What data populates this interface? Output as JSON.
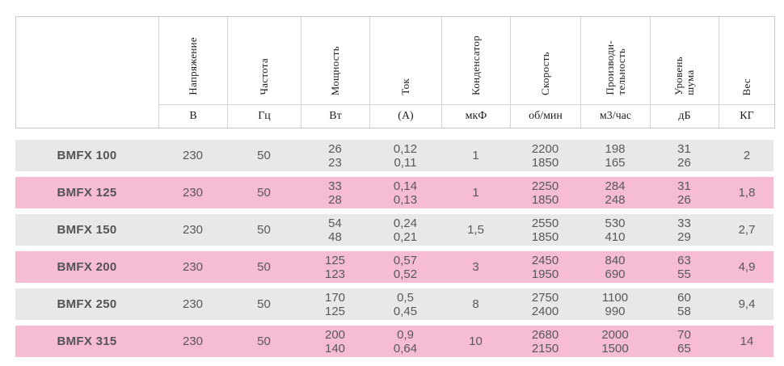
{
  "table": {
    "columns": [
      {
        "label": "Напряжение",
        "unit": "В"
      },
      {
        "label": "Частота",
        "unit": "Гц"
      },
      {
        "label": "Мощность",
        "unit": "Вт"
      },
      {
        "label": "Ток",
        "unit": "(А)"
      },
      {
        "label": "Конденсатор",
        "unit": "мкФ"
      },
      {
        "label": "Скорость",
        "unit": "об/мин"
      },
      {
        "label": "Производи-\nтельность",
        "unit": "м3/час"
      },
      {
        "label": "Уровень\nшума",
        "unit": "дБ"
      },
      {
        "label": "Вес",
        "unit": "КГ"
      }
    ],
    "rows": [
      {
        "model": "BMFX 100",
        "highlight": false,
        "values": [
          "230",
          "50",
          "26\n23",
          "0,12\n0,11",
          "1",
          "2200\n1850",
          "198\n165",
          "31\n26",
          "2"
        ]
      },
      {
        "model": "BMFX 125",
        "highlight": true,
        "values": [
          "230",
          "50",
          "33\n28",
          "0,14\n0,13",
          "1",
          "2250\n1850",
          "284\n248",
          "31\n26",
          "1,8"
        ]
      },
      {
        "model": "BMFX 150",
        "highlight": false,
        "values": [
          "230",
          "50",
          "54\n48",
          "0,24\n0,21",
          "1,5",
          "2550\n1850",
          "530\n410",
          "33\n29",
          "2,7"
        ]
      },
      {
        "model": "BMFX 200",
        "highlight": true,
        "values": [
          "230",
          "50",
          "125\n123",
          "0,57\n0,52",
          "3",
          "2450\n1950",
          "840\n690",
          "63\n55",
          "4,9"
        ]
      },
      {
        "model": "BMFX 250",
        "highlight": false,
        "values": [
          "230",
          "50",
          "170\n125",
          "0,5\n0,45",
          "8",
          "2750\n2400",
          "1100\n990",
          "60\n58",
          "9,4"
        ]
      },
      {
        "model": "BMFX 315",
        "highlight": true,
        "values": [
          "230",
          "50",
          "200\n140",
          "0,9\n0,64",
          "10",
          "2680\n2150",
          "2000\n1500",
          "70\n65",
          "14"
        ]
      }
    ],
    "colors": {
      "highlight_row": "#f5bcd4",
      "normal_row": "#e8e8e8",
      "border": "#c9c9c9",
      "body_text": "#58585a",
      "header_text": "#1d1d1d"
    }
  }
}
